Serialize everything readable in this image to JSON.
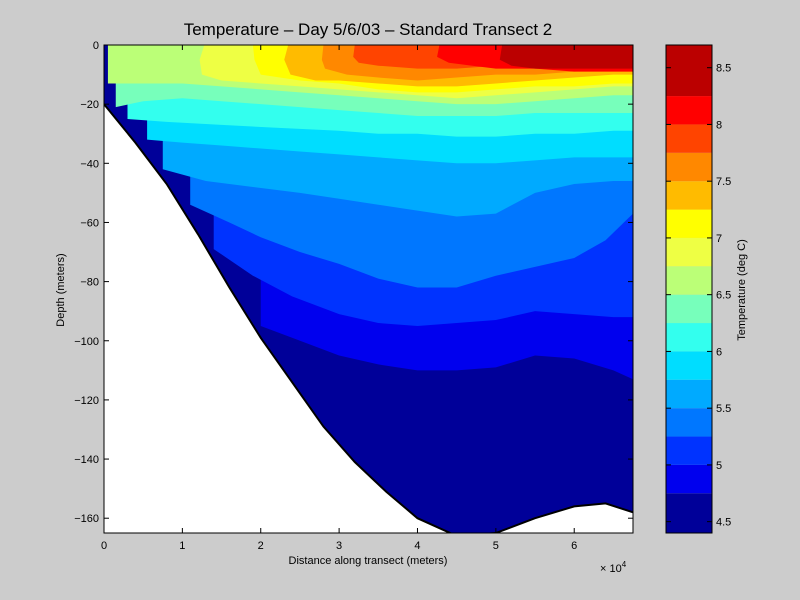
{
  "chart_data": {
    "type": "contour",
    "title": "Temperature – Day 5/6/03 – Standard Transect 2",
    "xlabel": "Distance along transect (meters)",
    "ylabel": "Depth (meters)",
    "x_multiplier": "× 10",
    "x_multiplier_exp": "4",
    "xlim": [
      0,
      6.75
    ],
    "ylim": [
      -165,
      0
    ],
    "xticks": [
      0,
      1,
      2,
      3,
      4,
      5,
      6
    ],
    "xtick_labels": [
      "0",
      "1",
      "2",
      "3",
      "4",
      "5",
      "6"
    ],
    "yticks": [
      0,
      -20,
      -40,
      -60,
      -80,
      -100,
      -120,
      -140,
      -160
    ],
    "ytick_labels": [
      "0",
      "−20",
      "−40",
      "−60",
      "−80",
      "−100",
      "−120",
      "−140",
      "−160"
    ],
    "bottom_profile": [
      [
        0,
        -20
      ],
      [
        0.4,
        -33
      ],
      [
        0.8,
        -47
      ],
      [
        1.2,
        -64
      ],
      [
        1.6,
        -82
      ],
      [
        2.0,
        -99
      ],
      [
        2.4,
        -114
      ],
      [
        2.8,
        -129
      ],
      [
        3.2,
        -141
      ],
      [
        3.6,
        -151
      ],
      [
        4.0,
        -160
      ],
      [
        4.5,
        -166
      ],
      [
        5.0,
        -165
      ],
      [
        5.5,
        -160
      ],
      [
        6.0,
        -156
      ],
      [
        6.4,
        -155
      ],
      [
        6.75,
        -158
      ]
    ],
    "contour_levels": [
      {
        "value": 4.75,
        "boundary": [
          [
            2.0,
            -95
          ],
          [
            2.4,
            -99
          ],
          [
            3.0,
            -105
          ],
          [
            3.5,
            -108
          ],
          [
            4.0,
            -110
          ],
          [
            4.5,
            -110
          ],
          [
            5.0,
            -109
          ],
          [
            5.5,
            -105
          ],
          [
            6.0,
            -106
          ],
          [
            6.5,
            -110
          ],
          [
            6.75,
            -113
          ]
        ]
      },
      {
        "value": 5.0,
        "boundary": [
          [
            1.4,
            -69
          ],
          [
            1.9,
            -78
          ],
          [
            2.4,
            -85
          ],
          [
            3.0,
            -91
          ],
          [
            3.5,
            -94
          ],
          [
            4.0,
            -95
          ],
          [
            4.5,
            -94
          ],
          [
            5.0,
            -93
          ],
          [
            5.5,
            -90
          ],
          [
            6.0,
            -91
          ],
          [
            6.5,
            -92
          ],
          [
            6.75,
            -92
          ]
        ]
      },
      {
        "value": 5.25,
        "boundary": [
          [
            1.1,
            -54
          ],
          [
            1.6,
            -60
          ],
          [
            2.0,
            -65
          ],
          [
            2.5,
            -70
          ],
          [
            3.0,
            -74
          ],
          [
            3.5,
            -79
          ],
          [
            4.0,
            -82
          ],
          [
            4.5,
            -82
          ],
          [
            5.0,
            -78
          ],
          [
            5.5,
            -75
          ],
          [
            6.0,
            -72
          ],
          [
            6.4,
            -66
          ],
          [
            6.75,
            -57
          ]
        ]
      },
      {
        "value": 5.5,
        "boundary": [
          [
            0.75,
            -42
          ],
          [
            1.3,
            -46
          ],
          [
            1.9,
            -48
          ],
          [
            2.5,
            -50
          ],
          [
            3.0,
            -52
          ],
          [
            3.5,
            -54
          ],
          [
            4.0,
            -56
          ],
          [
            4.5,
            -58
          ],
          [
            5.0,
            -57
          ],
          [
            5.5,
            -50
          ],
          [
            6.0,
            -47
          ],
          [
            6.5,
            -46
          ],
          [
            6.75,
            -46
          ]
        ]
      },
      {
        "value": 5.75,
        "boundary": [
          [
            0.55,
            -32
          ],
          [
            1.0,
            -33
          ],
          [
            1.5,
            -34
          ],
          [
            2.0,
            -35
          ],
          [
            2.5,
            -36
          ],
          [
            3.0,
            -37
          ],
          [
            3.5,
            -38
          ],
          [
            4.0,
            -39
          ],
          [
            4.5,
            -40
          ],
          [
            5.0,
            -40
          ],
          [
            5.5,
            -39
          ],
          [
            6.0,
            -38
          ],
          [
            6.5,
            -38
          ],
          [
            6.75,
            -38
          ]
        ]
      },
      {
        "value": 6.0,
        "boundary": [
          [
            0.3,
            -25
          ],
          [
            0.8,
            -26
          ],
          [
            1.5,
            -27
          ],
          [
            2.2,
            -28
          ],
          [
            3.0,
            -29
          ],
          [
            3.5,
            -30
          ],
          [
            4.0,
            -30
          ],
          [
            4.5,
            -31
          ],
          [
            5.0,
            -31
          ],
          [
            5.5,
            -30
          ],
          [
            6.0,
            -30
          ],
          [
            6.5,
            -29
          ],
          [
            6.75,
            -29
          ]
        ]
      },
      {
        "value": 6.25,
        "boundary": [
          [
            0.15,
            -21
          ],
          [
            0.5,
            -19
          ],
          [
            1.0,
            -18
          ],
          [
            1.5,
            -19
          ],
          [
            2.0,
            -20
          ],
          [
            2.5,
            -21
          ],
          [
            3.0,
            -22
          ],
          [
            3.5,
            -23
          ],
          [
            4.0,
            -24
          ],
          [
            4.5,
            -24
          ],
          [
            5.0,
            -24
          ],
          [
            5.5,
            -23
          ],
          [
            6.0,
            -23
          ],
          [
            6.5,
            -23
          ],
          [
            6.75,
            -23
          ]
        ]
      },
      {
        "value": 6.5,
        "boundary": [
          [
            0.05,
            -13
          ],
          [
            0.5,
            -13
          ],
          [
            1.0,
            -13
          ],
          [
            1.5,
            -14
          ],
          [
            2.0,
            -15
          ],
          [
            2.5,
            -16
          ],
          [
            3.0,
            -17
          ],
          [
            3.5,
            -18
          ],
          [
            4.0,
            -19
          ],
          [
            4.5,
            -20
          ],
          [
            5.0,
            -20
          ],
          [
            5.5,
            -19
          ],
          [
            6.0,
            -18
          ],
          [
            6.5,
            -17
          ],
          [
            6.75,
            -17
          ]
        ]
      },
      {
        "value": 6.75,
        "boundary": [
          [
            1.28,
            0
          ],
          [
            1.22,
            -5
          ],
          [
            1.25,
            -10
          ],
          [
            1.5,
            -12
          ],
          [
            2.0,
            -13
          ],
          [
            2.5,
            -14
          ],
          [
            3.0,
            -15
          ],
          [
            3.5,
            -16
          ],
          [
            4.0,
            -17
          ],
          [
            4.5,
            -18
          ],
          [
            5.0,
            -17
          ],
          [
            5.5,
            -16
          ],
          [
            6.0,
            -15
          ],
          [
            6.5,
            -14
          ],
          [
            6.75,
            -14
          ]
        ]
      },
      {
        "value": 7.0,
        "boundary": [
          [
            1.9,
            0
          ],
          [
            1.92,
            -5
          ],
          [
            2.0,
            -10
          ],
          [
            2.5,
            -12
          ],
          [
            3.0,
            -13
          ],
          [
            3.5,
            -15
          ],
          [
            4.0,
            -16
          ],
          [
            4.5,
            -16
          ],
          [
            5.0,
            -15
          ],
          [
            5.5,
            -14
          ],
          [
            6.0,
            -14
          ],
          [
            6.5,
            -13
          ],
          [
            6.75,
            -13
          ]
        ]
      },
      {
        "value": 7.25,
        "boundary": [
          [
            2.35,
            0
          ],
          [
            2.3,
            -5
          ],
          [
            2.38,
            -10
          ],
          [
            2.7,
            -12
          ],
          [
            3.0,
            -12
          ],
          [
            3.5,
            -13
          ],
          [
            4.0,
            -14
          ],
          [
            4.5,
            -14
          ],
          [
            5.0,
            -13
          ],
          [
            5.5,
            -12
          ],
          [
            6.0,
            -11
          ],
          [
            6.5,
            -10
          ],
          [
            6.75,
            -10
          ]
        ]
      },
      {
        "value": 7.5,
        "boundary": [
          [
            2.8,
            0
          ],
          [
            2.78,
            -5
          ],
          [
            2.82,
            -8
          ],
          [
            3.1,
            -10
          ],
          [
            3.5,
            -11
          ],
          [
            4.0,
            -12
          ],
          [
            4.5,
            -11
          ],
          [
            5.0,
            -10
          ],
          [
            5.5,
            -10
          ],
          [
            6.0,
            -9
          ],
          [
            6.5,
            -8
          ],
          [
            6.75,
            -8
          ]
        ]
      },
      {
        "value": 7.75,
        "boundary": [
          [
            3.2,
            0
          ],
          [
            3.18,
            -4
          ],
          [
            3.25,
            -6
          ],
          [
            3.5,
            -7
          ],
          [
            4.0,
            -8
          ],
          [
            4.5,
            -8
          ],
          [
            5.0,
            -7
          ],
          [
            5.5,
            -7
          ],
          [
            6.0,
            -6
          ],
          [
            6.5,
            -6
          ],
          [
            6.75,
            -6
          ]
        ]
      },
      {
        "value": 8.0,
        "boundary": [
          [
            4.28,
            0
          ],
          [
            4.25,
            -4
          ],
          [
            4.4,
            -6
          ],
          [
            4.7,
            -7
          ],
          [
            5.0,
            -8
          ],
          [
            5.5,
            -8
          ],
          [
            6.0,
            -9
          ],
          [
            6.5,
            -9
          ],
          [
            6.75,
            -9
          ]
        ]
      },
      {
        "value": 8.25,
        "boundary": [
          [
            5.08,
            0
          ],
          [
            5.05,
            -5
          ],
          [
            5.2,
            -7
          ],
          [
            5.5,
            -8
          ],
          [
            6.0,
            -8
          ],
          [
            6.5,
            -8
          ],
          [
            6.75,
            -8
          ]
        ]
      },
      {
        "value": 8.5,
        "boundary": [
          [
            6.75,
            0
          ],
          [
            6.75,
            0
          ]
        ]
      }
    ],
    "colorbar": {
      "label": "Temperature (deg C)",
      "range": [
        4.4,
        8.7
      ],
      "ticks": [
        4.5,
        5,
        5.5,
        6,
        6.5,
        7,
        7.5,
        8,
        8.5
      ],
      "tick_labels": [
        "4.5",
        "5",
        "5.5",
        "6",
        "6.5",
        "7",
        "7.5",
        "8",
        "8.5"
      ],
      "bands": [
        {
          "from": 4.4,
          "to": 4.75,
          "color": "#000099"
        },
        {
          "from": 4.75,
          "to": 5.0,
          "color": "#0000ee"
        },
        {
          "from": 5.0,
          "to": 5.25,
          "color": "#0033ff"
        },
        {
          "from": 5.25,
          "to": 5.5,
          "color": "#0077ff"
        },
        {
          "from": 5.5,
          "to": 5.75,
          "color": "#00aaff"
        },
        {
          "from": 5.75,
          "to": 6.0,
          "color": "#00ddff"
        },
        {
          "from": 6.0,
          "to": 6.25,
          "color": "#33ffee"
        },
        {
          "from": 6.25,
          "to": 6.5,
          "color": "#77ffbb"
        },
        {
          "from": 6.5,
          "to": 6.75,
          "color": "#bbff77"
        },
        {
          "from": 6.75,
          "to": 7.0,
          "color": "#eeff44"
        },
        {
          "from": 7.0,
          "to": 7.25,
          "color": "#ffff00"
        },
        {
          "from": 7.25,
          "to": 7.5,
          "color": "#ffbb00"
        },
        {
          "from": 7.5,
          "to": 7.75,
          "color": "#ff8800"
        },
        {
          "from": 7.75,
          "to": 8.0,
          "color": "#ff4400"
        },
        {
          "from": 8.0,
          "to": 8.25,
          "color": "#ff0000"
        },
        {
          "from": 8.25,
          "to": 8.7,
          "color": "#bb0000"
        }
      ]
    },
    "seabed_color": "#ffffff",
    "background_color": "#cccccc"
  }
}
